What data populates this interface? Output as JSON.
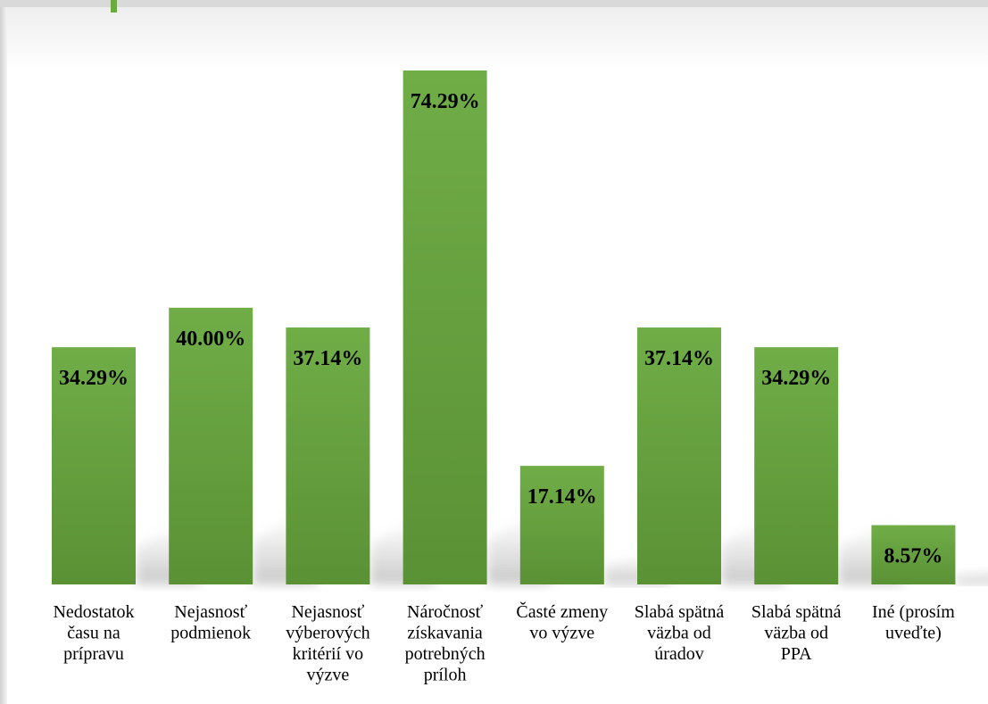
{
  "chart_data": {
    "type": "bar",
    "categories": [
      [
        "Nedostatok",
        "času na",
        "prípravu"
      ],
      [
        "Nejasnosť",
        "podmienok"
      ],
      [
        "Nejasnosť",
        "výberových",
        "kritérií vo",
        "výzve"
      ],
      [
        "Náročnosť",
        "získavania",
        "potrebných",
        "príloh"
      ],
      [
        "Časté zmeny",
        "vo výzve"
      ],
      [
        "Slabá spätná",
        "väzba od",
        "úradov"
      ],
      [
        "Slabá spätná",
        "väzba od",
        "PPA"
      ],
      [
        "Iné (prosím",
        "uveďte)"
      ]
    ],
    "values": [
      34.29,
      40.0,
      37.14,
      74.29,
      17.14,
      37.14,
      34.29,
      8.57
    ],
    "value_labels": [
      "34.29%",
      "40.00%",
      "37.14%",
      "74.29%",
      "17.14%",
      "37.14%",
      "34.29%",
      "8.57%"
    ],
    "ylim": [
      0,
      75
    ],
    "grid": false,
    "legend": "none",
    "colors": {
      "bar_top": "#70ad47",
      "bar_bottom": "#5e9637",
      "accent": "#6aab3f"
    }
  }
}
